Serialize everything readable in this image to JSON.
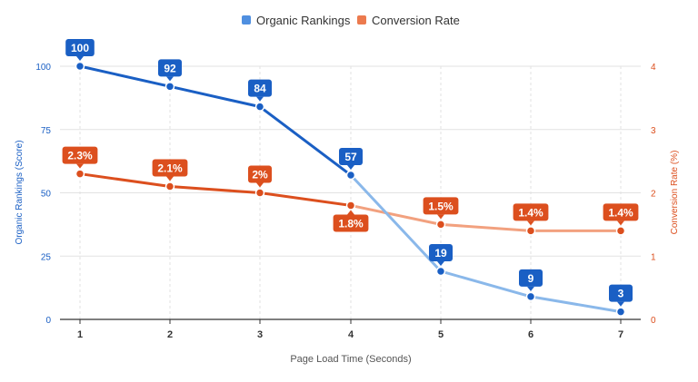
{
  "chart_data": {
    "type": "line",
    "title": "",
    "x": [
      1,
      2,
      3,
      4,
      5,
      6,
      7
    ],
    "xlabel": "Page Load Time (Seconds)",
    "ylabel_left": "Organic Rankings (Score)",
    "ylabel_right": "Conversion Rate (%)",
    "ylim_left": [
      0,
      100
    ],
    "ylim_right": [
      0,
      4
    ],
    "yticks_left": [
      "0",
      "25",
      "50",
      "75",
      "100"
    ],
    "yticks_right": [
      "0",
      "1",
      "2",
      "3",
      "4"
    ],
    "grid": true,
    "legend_position": "top-center",
    "series": [
      {
        "name": "Organic Rankings",
        "axis": "left",
        "color": "#1a5fc4",
        "color_light": "#8ab8ea",
        "values": [
          100,
          92,
          84,
          57,
          19,
          9,
          3
        ],
        "labels": [
          "100",
          "92",
          "84",
          "57",
          "19",
          "9",
          "3"
        ]
      },
      {
        "name": "Conversion Rate",
        "axis": "right",
        "color": "#dc4f1e",
        "color_light": "#f2a17f",
        "values": [
          2.3,
          2.1,
          2.0,
          1.8,
          1.5,
          1.4,
          1.4
        ],
        "labels": [
          "2.3%",
          "2.1%",
          "2%",
          "1.8%",
          "1.5%",
          "1.4%",
          "1.4%"
        ]
      }
    ]
  }
}
